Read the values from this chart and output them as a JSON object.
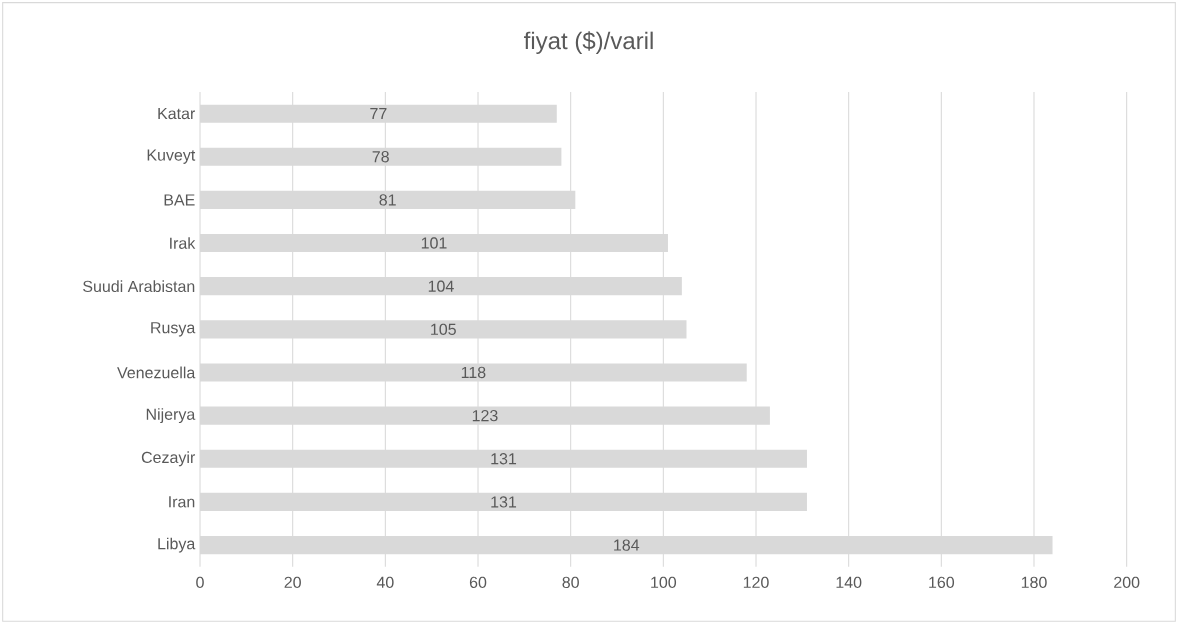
{
  "chart_data": {
    "type": "bar",
    "orientation": "horizontal",
    "title": "fiyat ($)/varil",
    "categories": [
      "Katar",
      "Kuveyt",
      "BAE",
      "Irak",
      "Suudi Arabistan",
      "Rusya",
      "Venezuella",
      "Nijerya",
      "Cezayir",
      "Iran",
      "Libya"
    ],
    "values": [
      77,
      78,
      81,
      101,
      104,
      105,
      118,
      123,
      131,
      131,
      184
    ],
    "color": "#d9d9d9",
    "xlim": [
      0,
      200
    ],
    "xticks": [
      0,
      20,
      40,
      60,
      80,
      100,
      120,
      140,
      160,
      180,
      200
    ],
    "grid": "x",
    "data_labels": true
  }
}
